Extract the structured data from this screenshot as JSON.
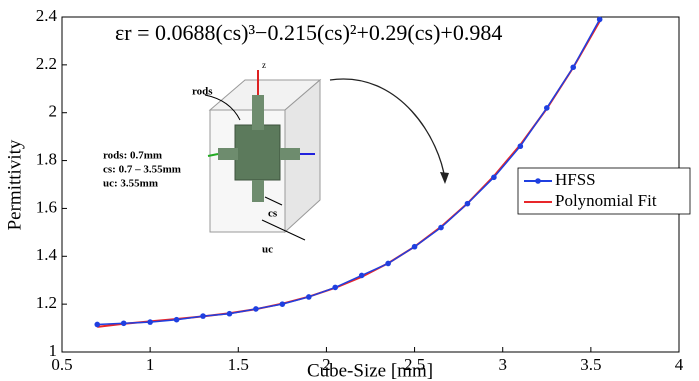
{
  "chart_data": {
    "type": "line",
    "xlabel": "Cube-Size [mm]",
    "ylabel": "Permittivity",
    "x": [
      0.7,
      0.85,
      1.0,
      1.15,
      1.3,
      1.45,
      1.6,
      1.75,
      1.9,
      2.05,
      2.2,
      2.35,
      2.5,
      2.65,
      2.8,
      2.95,
      3.1,
      3.25,
      3.4,
      3.55
    ],
    "series": [
      {
        "name": "HFSS",
        "color": "#1f3fe0",
        "marker": true,
        "values": [
          1.115,
          1.12,
          1.125,
          1.135,
          1.15,
          1.16,
          1.18,
          1.2,
          1.23,
          1.27,
          1.32,
          1.37,
          1.44,
          1.52,
          1.62,
          1.73,
          1.86,
          2.02,
          2.19,
          2.39
        ]
      },
      {
        "name": "Polynomial Fit",
        "color": "#e8262a",
        "marker": false,
        "values": [
          1.105,
          1.118,
          1.128,
          1.138,
          1.149,
          1.162,
          1.179,
          1.202,
          1.231,
          1.268,
          1.314,
          1.371,
          1.44,
          1.523,
          1.621,
          1.735,
          1.866,
          2.017,
          2.189,
          2.382
        ]
      }
    ],
    "xlim": [
      0.5,
      4
    ],
    "xticks": [
      0.5,
      1,
      1.5,
      2,
      2.5,
      3,
      3.5,
      4
    ],
    "ylim": [
      1,
      2.4
    ],
    "yticks": [
      1,
      1.2,
      1.4,
      1.6,
      1.8,
      2,
      2.2,
      2.4
    ],
    "legend": "right",
    "annotations": [
      "εr = 0.0688(cs)³−0.215(cs)²+0.29(cs)+0.984"
    ],
    "inset": {
      "specs": [
        "rods: 0.7mm",
        "cs: 0.7 – 3.55mm",
        "uc: 3.55mm"
      ],
      "labels": [
        "rods",
        "cs",
        "uc",
        "z"
      ]
    }
  }
}
